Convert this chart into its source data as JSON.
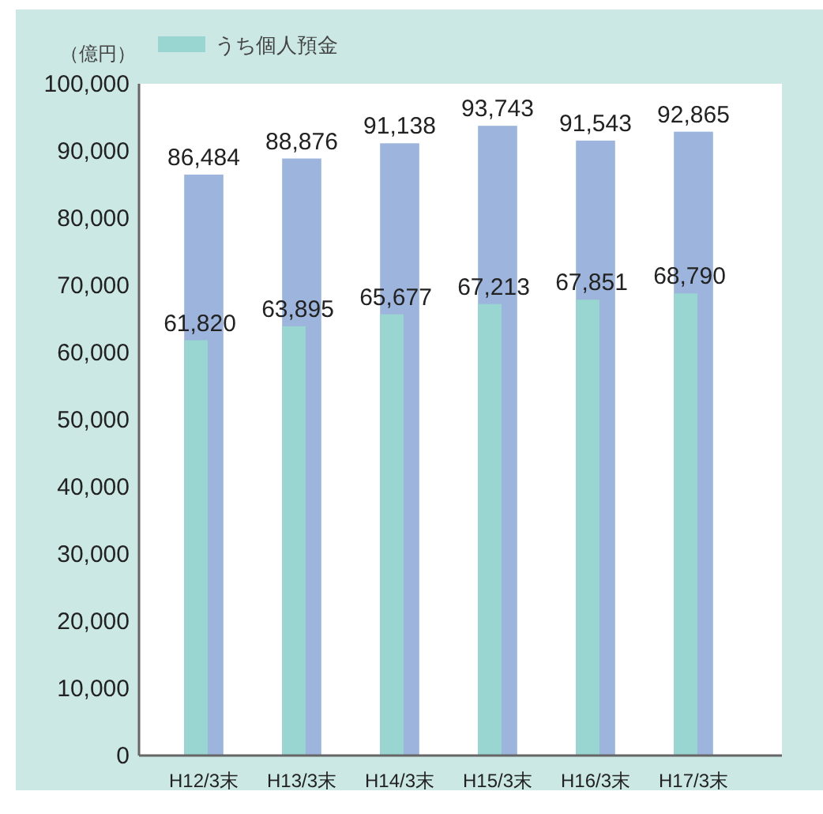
{
  "chart_data": {
    "type": "bar",
    "ylabel": "（億円）",
    "categories": [
      "H12/3末",
      "H13/3末",
      "H14/3末",
      "H15/3末",
      "H16/3末",
      "H17/3末"
    ],
    "series": [
      {
        "color": "#9db5dc",
        "values": [
          86484,
          88876,
          91138,
          93743,
          91543,
          92865
        ],
        "value_labels": [
          "86,484",
          "88,876",
          "91,138",
          "93,743",
          "91,543",
          "92,865"
        ]
      },
      {
        "name": "うち個人預金",
        "color": "#99d5d1",
        "values": [
          61820,
          63895,
          65677,
          67213,
          67851,
          68790
        ],
        "value_labels": [
          "61,820",
          "63,895",
          "65,677",
          "67,213",
          "67,851",
          "68,790"
        ]
      }
    ],
    "ylim": [
      0,
      100000
    ],
    "yticks": [
      {
        "value": 0,
        "label": "0"
      },
      {
        "value": 10000,
        "label": "10,000"
      },
      {
        "value": 20000,
        "label": "20,000"
      },
      {
        "value": 30000,
        "label": "30,000"
      },
      {
        "value": 40000,
        "label": "40,000"
      },
      {
        "value": 50000,
        "label": "50,000"
      },
      {
        "value": 60000,
        "label": "60,000"
      },
      {
        "value": 70000,
        "label": "70,000"
      },
      {
        "value": 80000,
        "label": "80,000"
      },
      {
        "value": 90000,
        "label": "90,000"
      },
      {
        "value": 100000,
        "label": "100,000"
      }
    ],
    "legend": "top left",
    "grid": false
  }
}
